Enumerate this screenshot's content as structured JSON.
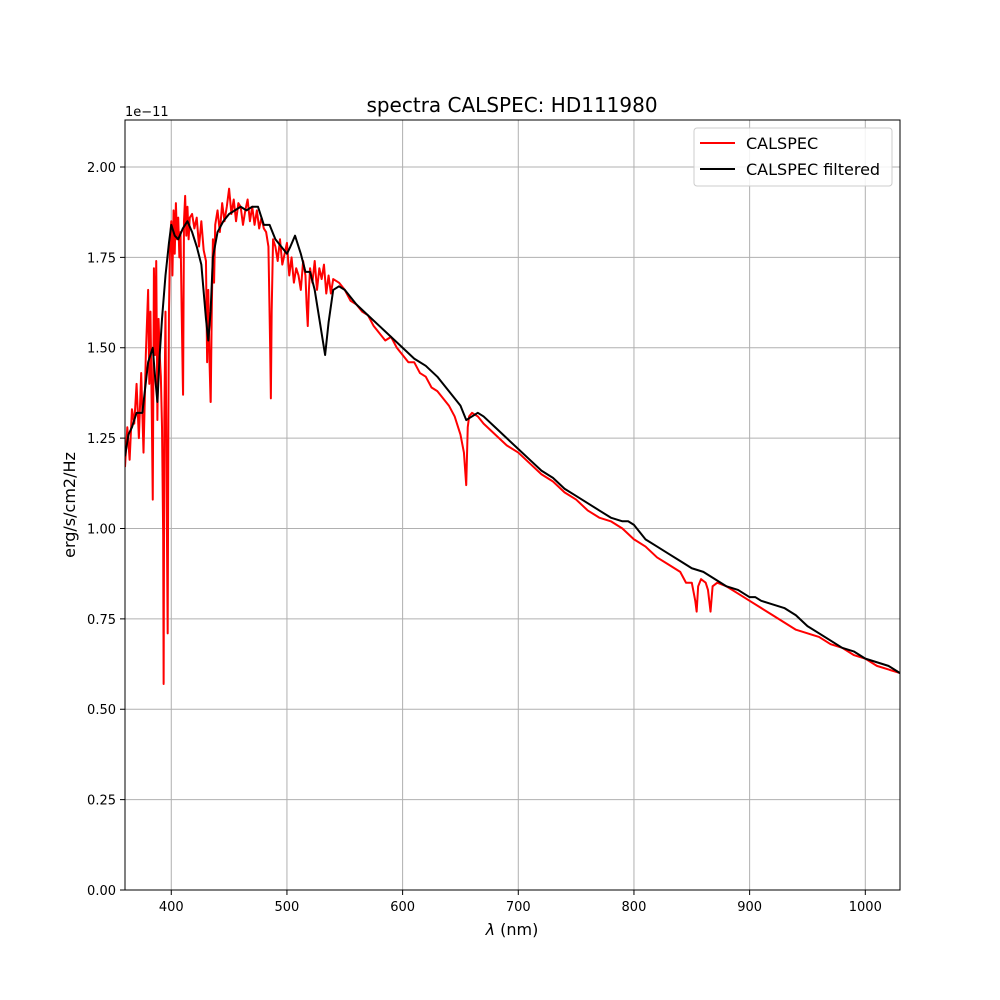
{
  "chart_data": {
    "type": "line",
    "title": "spectra CALSPEC: HD111980",
    "xlabel": "λ (nm)",
    "ylabel": "erg/s/cm2/Hz",
    "offset_text": "1e−11",
    "xlim": [
      360,
      1030
    ],
    "ylim": [
      0,
      2.13
    ],
    "x_ticks": [
      400,
      500,
      600,
      700,
      800,
      900,
      1000
    ],
    "x_tick_labels": [
      "400",
      "500",
      "600",
      "700",
      "800",
      "900",
      "1000"
    ],
    "y_ticks": [
      0,
      0.25,
      0.5,
      0.75,
      1.0,
      1.25,
      1.5,
      1.75,
      2.0
    ],
    "y_tick_labels": [
      "0.00",
      "0.25",
      "0.50",
      "0.75",
      "1.00",
      "1.25",
      "1.50",
      "1.75",
      "2.00"
    ],
    "grid": true,
    "legend_position": "top-right",
    "series": [
      {
        "name": "CALSPEC",
        "color": "#ff0000",
        "x": [
          360,
          362,
          364,
          366,
          368,
          370,
          372,
          374,
          376,
          378,
          380,
          381,
          382,
          383,
          384,
          385,
          386,
          387,
          388,
          389,
          390,
          391,
          392,
          393,
          393.4,
          394,
          395,
          396,
          396.9,
          397.5,
          398,
          399,
          400,
          401,
          402,
          403,
          404,
          405,
          406,
          407,
          408,
          409,
          410,
          410.2,
          411,
          412,
          413,
          414,
          415,
          416,
          418,
          420,
          422,
          424,
          426,
          428,
          430,
          431,
          432,
          433,
          434,
          434.1,
          435,
          436,
          437,
          438,
          440,
          442,
          444,
          446,
          448,
          450,
          452,
          454,
          456,
          458,
          460,
          462,
          464,
          466,
          468,
          470,
          472,
          474,
          476,
          478,
          480,
          482,
          484,
          485.5,
          486.1,
          486.8,
          488,
          490,
          492,
          494,
          496,
          498,
          500,
          502,
          504,
          506,
          508,
          510,
          512,
          514,
          516,
          517,
          518,
          519,
          520,
          522,
          524,
          526,
          528,
          530,
          532,
          534,
          536,
          538,
          540,
          545,
          550,
          555,
          560,
          565,
          570,
          575,
          580,
          585,
          590,
          595,
          600,
          605,
          610,
          615,
          620,
          625,
          630,
          635,
          640,
          645,
          650,
          653,
          655,
          656.3,
          657.5,
          660,
          665,
          670,
          680,
          690,
          700,
          710,
          720,
          730,
          740,
          750,
          760,
          770,
          780,
          790,
          800,
          810,
          820,
          830,
          840,
          845,
          850,
          853,
          854.2,
          855.5,
          858,
          862,
          864,
          866.2,
          868,
          872,
          880,
          890,
          900,
          910,
          920,
          930,
          940,
          950,
          960,
          970,
          980,
          990,
          1000,
          1010,
          1020,
          1030
        ],
        "y": [
          1.17,
          1.28,
          1.19,
          1.33,
          1.29,
          1.4,
          1.25,
          1.43,
          1.21,
          1.48,
          1.66,
          1.4,
          1.6,
          1.36,
          1.08,
          1.72,
          1.48,
          1.74,
          1.3,
          1.58,
          1.48,
          1.42,
          1.28,
          0.98,
          0.57,
          1.3,
          1.6,
          1.1,
          0.71,
          1.3,
          1.6,
          1.8,
          1.85,
          1.7,
          1.88,
          1.76,
          1.9,
          1.8,
          1.86,
          1.75,
          1.82,
          1.6,
          1.4,
          1.37,
          1.85,
          1.92,
          1.81,
          1.89,
          1.8,
          1.86,
          1.87,
          1.83,
          1.86,
          1.78,
          1.85,
          1.77,
          1.74,
          1.46,
          1.66,
          1.47,
          1.35,
          1.35,
          1.6,
          1.8,
          1.68,
          1.84,
          1.88,
          1.82,
          1.9,
          1.85,
          1.89,
          1.94,
          1.87,
          1.91,
          1.85,
          1.9,
          1.89,
          1.84,
          1.88,
          1.91,
          1.85,
          1.89,
          1.84,
          1.88,
          1.83,
          1.86,
          1.83,
          1.82,
          1.78,
          1.5,
          1.36,
          1.6,
          1.8,
          1.78,
          1.74,
          1.8,
          1.73,
          1.76,
          1.79,
          1.7,
          1.75,
          1.68,
          1.72,
          1.7,
          1.66,
          1.74,
          1.7,
          1.62,
          1.56,
          1.66,
          1.72,
          1.68,
          1.74,
          1.66,
          1.72,
          1.69,
          1.73,
          1.65,
          1.7,
          1.65,
          1.69,
          1.68,
          1.66,
          1.63,
          1.62,
          1.6,
          1.59,
          1.56,
          1.54,
          1.52,
          1.53,
          1.5,
          1.48,
          1.46,
          1.46,
          1.43,
          1.42,
          1.39,
          1.38,
          1.36,
          1.34,
          1.31,
          1.26,
          1.21,
          1.12,
          1.28,
          1.31,
          1.32,
          1.31,
          1.29,
          1.26,
          1.23,
          1.21,
          1.18,
          1.15,
          1.13,
          1.1,
          1.08,
          1.05,
          1.03,
          1.02,
          1.0,
          0.97,
          0.95,
          0.92,
          0.9,
          0.88,
          0.85,
          0.85,
          0.8,
          0.77,
          0.84,
          0.86,
          0.85,
          0.83,
          0.77,
          0.84,
          0.85,
          0.84,
          0.82,
          0.8,
          0.78,
          0.76,
          0.74,
          0.72,
          0.71,
          0.7,
          0.68,
          0.67,
          0.65,
          0.64,
          0.62,
          0.61,
          0.6
        ]
      },
      {
        "name": "CALSPEC filtered",
        "color": "#000000",
        "x": [
          360,
          363,
          366,
          370,
          375,
          380,
          384,
          386,
          388,
          390,
          392,
          395,
          398,
          400,
          403,
          406,
          410,
          414,
          418,
          422,
          426,
          430,
          432,
          434,
          436,
          440,
          445,
          450,
          455,
          460,
          465,
          470,
          475,
          480,
          485,
          490,
          495,
          500,
          503,
          507,
          512,
          516,
          520,
          524,
          528,
          533,
          536,
          540,
          545,
          550,
          560,
          570,
          580,
          590,
          600,
          610,
          620,
          630,
          640,
          650,
          655,
          660,
          665,
          670,
          680,
          690,
          700,
          710,
          720,
          730,
          740,
          750,
          760,
          770,
          780,
          790,
          795,
          800,
          805,
          810,
          820,
          830,
          840,
          850,
          860,
          865,
          870,
          880,
          890,
          900,
          905,
          910,
          920,
          930,
          940,
          950,
          960,
          970,
          980,
          990,
          1000,
          1010,
          1020,
          1030
        ],
        "y": [
          1.2,
          1.26,
          1.28,
          1.32,
          1.32,
          1.46,
          1.5,
          1.42,
          1.35,
          1.48,
          1.58,
          1.7,
          1.79,
          1.84,
          1.81,
          1.8,
          1.83,
          1.85,
          1.82,
          1.78,
          1.73,
          1.58,
          1.52,
          1.6,
          1.75,
          1.82,
          1.85,
          1.87,
          1.88,
          1.89,
          1.88,
          1.89,
          1.89,
          1.84,
          1.84,
          1.8,
          1.78,
          1.76,
          1.78,
          1.81,
          1.76,
          1.71,
          1.71,
          1.66,
          1.58,
          1.48,
          1.57,
          1.66,
          1.67,
          1.66,
          1.62,
          1.59,
          1.56,
          1.53,
          1.5,
          1.47,
          1.45,
          1.42,
          1.38,
          1.34,
          1.3,
          1.31,
          1.32,
          1.31,
          1.28,
          1.25,
          1.22,
          1.19,
          1.16,
          1.14,
          1.11,
          1.09,
          1.07,
          1.05,
          1.03,
          1.02,
          1.02,
          1.01,
          0.99,
          0.97,
          0.95,
          0.93,
          0.91,
          0.89,
          0.88,
          0.87,
          0.86,
          0.84,
          0.83,
          0.81,
          0.81,
          0.8,
          0.79,
          0.78,
          0.76,
          0.73,
          0.71,
          0.69,
          0.67,
          0.66,
          0.64,
          0.63,
          0.62,
          0.6
        ]
      }
    ]
  }
}
